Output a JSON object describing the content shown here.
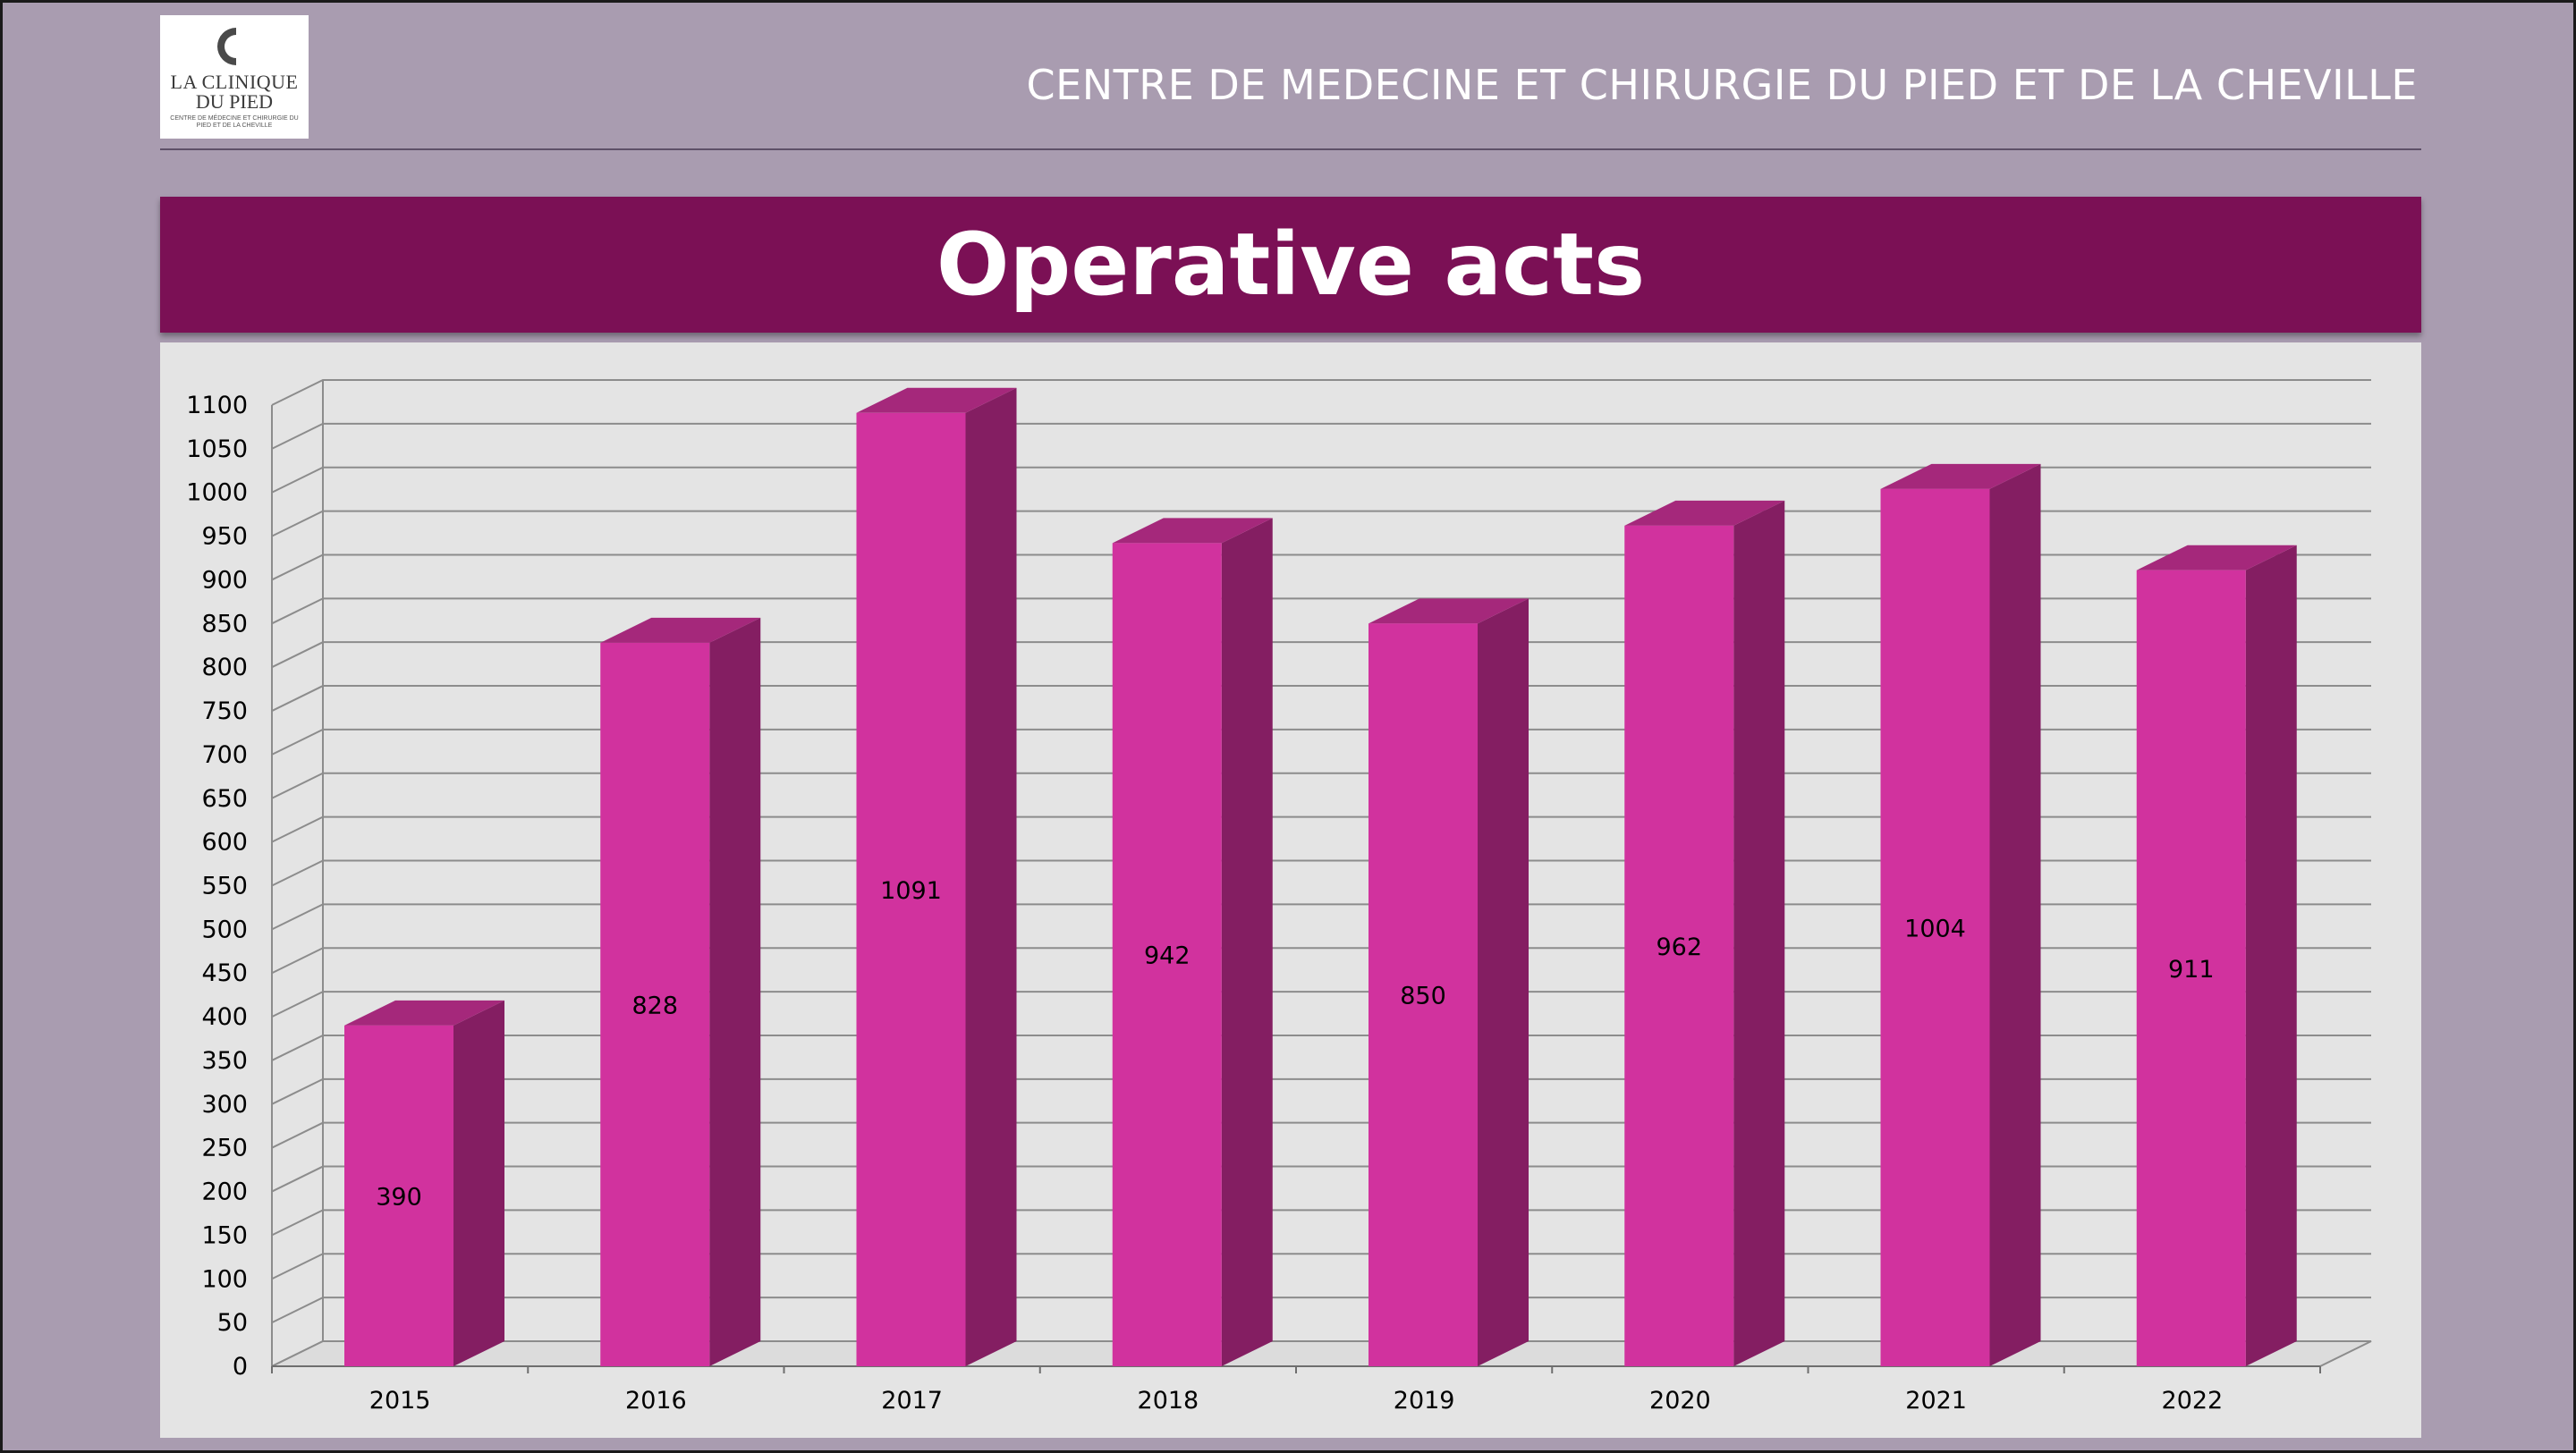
{
  "header": {
    "logo_line1": "LA CLINIQUE",
    "logo_line2": "DU PIED",
    "logo_line3": "CENTRE DE MÉDECINE ET CHIRURGIE DU PIED ET DE LA CHEVILLE",
    "title": "CENTRE DE MEDECINE ET CHIRURGIE DU PIED ET DE LA CHEVILLE"
  },
  "banner": {
    "title": "Operative acts"
  },
  "colors": {
    "background": "#a99cb0",
    "banner": "#7b1055",
    "bar_front": "#d1329e",
    "bar_side": "#841e62",
    "bar_top": "#a5287b",
    "panel": "#e4e4e4",
    "grid": "#8c8c8c"
  },
  "chart_data": {
    "type": "bar",
    "title": "Operative acts",
    "categories": [
      "2015",
      "2016",
      "2017",
      "2018",
      "2019",
      "2020",
      "2021",
      "2022"
    ],
    "values": [
      390,
      828,
      1091,
      942,
      850,
      962,
      1004,
      911
    ],
    "value_labels": [
      "390",
      "828",
      "1091",
      "942",
      "850",
      "962",
      "1004",
      "911"
    ],
    "ylim": [
      0,
      1100
    ],
    "ytick_step": 50,
    "ytick_labels": [
      "0",
      "50",
      "100",
      "150",
      "200",
      "250",
      "300",
      "350",
      "400",
      "450",
      "500",
      "550",
      "600",
      "650",
      "700",
      "750",
      "800",
      "850",
      "900",
      "950",
      "1000",
      "1050",
      "1100"
    ],
    "xlabel": "",
    "ylabel": "",
    "grid": true,
    "legend": "none"
  }
}
